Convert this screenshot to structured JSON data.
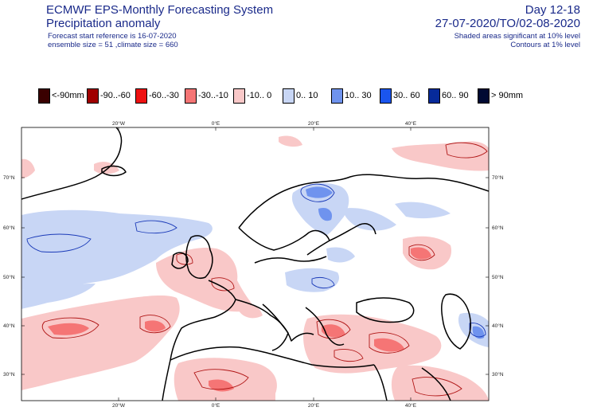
{
  "header": {
    "title": "ECMWF EPS-Monthly Forecasting System",
    "subtitle": "Precipitation anomaly",
    "forecast_reference": "Forecast start reference is 16-07-2020",
    "ensemble_info": "ensemble size = 51  ,climate size = 660",
    "day_range": "Day 12-18",
    "period": "27-07-2020/TO/02-08-2020",
    "significance_note": "Shaded areas significant at 10% level",
    "contour_note": "Contours at 1% level"
  },
  "legend": [
    {
      "label": "<-90mm",
      "color": "#3a0000"
    },
    {
      "label": "-90..-60",
      "color": "#a00000"
    },
    {
      "label": "-60..-30",
      "color": "#ee1111"
    },
    {
      "label": "-30..-10",
      "color": "#f57575"
    },
    {
      "label": "-10..  0",
      "color": "#f9c8c8"
    },
    {
      "label": "0.. 10",
      "color": "#c8d6f5"
    },
    {
      "label": "10.. 30",
      "color": "#6f93ee"
    },
    {
      "label": "30.. 60",
      "color": "#1a55ee"
    },
    {
      "label": "60.. 90",
      "color": "#062a9a"
    },
    {
      "label": "> 90mm",
      "color": "#000a33"
    }
  ],
  "map": {
    "lon_labels": [
      "20°W",
      "0°E",
      "20°E",
      "40°E"
    ],
    "lat_labels": [
      "70°N",
      "60°N",
      "50°N",
      "40°N",
      "30°N"
    ]
  }
}
